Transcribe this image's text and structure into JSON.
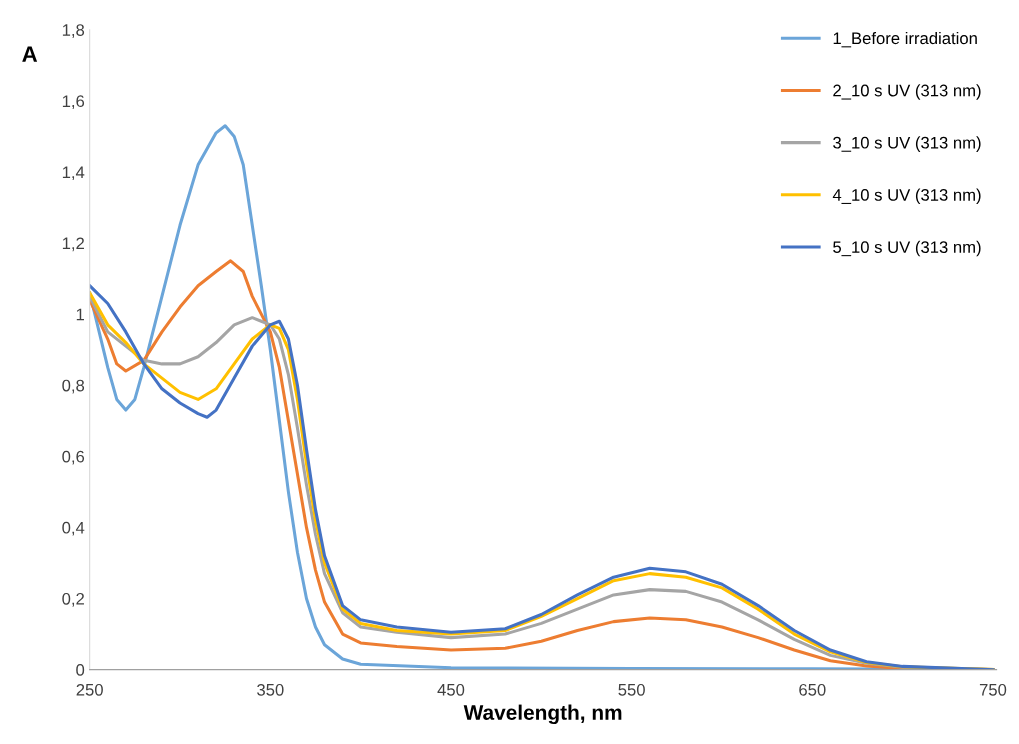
{
  "chart_data": {
    "type": "line",
    "xlabel": "Wavelength, nm",
    "ylabel": "A",
    "xlim": [
      250,
      752
    ],
    "xticks": [
      250,
      350,
      450,
      550,
      650,
      750
    ],
    "ylim": [
      0,
      1.8
    ],
    "yticks": [
      0,
      {
        "value": 0.2,
        "label": "0,2"
      },
      {
        "value": 0.4,
        "label": "0,4"
      },
      {
        "value": 0.6,
        "label": "0,6"
      },
      {
        "value": 0.8,
        "label": "0,8"
      },
      1,
      {
        "value": 1.2,
        "label": "1,2"
      },
      {
        "value": 1.4,
        "label": "1,4"
      },
      {
        "value": 1.6,
        "label": "1,6"
      },
      {
        "value": 1.8,
        "label": "1,8"
      }
    ],
    "grid": false,
    "legend": "top right",
    "marker": "none",
    "line_style": "solid",
    "series": [
      {
        "name": "1_Before irradiation",
        "color": "#6ba5d9",
        "x": [
          250,
          260,
          265,
          270,
          275,
          280,
          290,
          300,
          310,
          320,
          325,
          330,
          335,
          340,
          345,
          350,
          355,
          360,
          365,
          370,
          375,
          380,
          390,
          400,
          450,
          550,
          650,
          750
        ],
        "values": [
          1.06,
          0.85,
          0.76,
          0.73,
          0.76,
          0.85,
          1.05,
          1.25,
          1.42,
          1.51,
          1.53,
          1.5,
          1.42,
          1.25,
          1.08,
          0.9,
          0.7,
          0.5,
          0.33,
          0.2,
          0.12,
          0.07,
          0.03,
          0.015,
          0.005,
          0.003,
          0.002,
          0
        ]
      },
      {
        "name": "2_10 s UV (313 nm)",
        "color": "#ed7d31",
        "x": [
          250,
          260,
          265,
          270,
          280,
          290,
          300,
          310,
          320,
          328,
          335,
          340,
          345,
          350,
          355,
          360,
          365,
          370,
          375,
          380,
          390,
          400,
          420,
          450,
          480,
          500,
          520,
          540,
          560,
          580,
          600,
          620,
          640,
          660,
          680,
          700,
          750
        ],
        "values": [
          1.04,
          0.93,
          0.86,
          0.84,
          0.87,
          0.95,
          1.02,
          1.08,
          1.12,
          1.15,
          1.12,
          1.05,
          1.0,
          0.95,
          0.85,
          0.7,
          0.55,
          0.4,
          0.28,
          0.19,
          0.1,
          0.075,
          0.065,
          0.055,
          0.06,
          0.08,
          0.11,
          0.135,
          0.145,
          0.14,
          0.12,
          0.09,
          0.055,
          0.025,
          0.01,
          0.003,
          0
        ]
      },
      {
        "name": "3_10 s UV (313 nm)",
        "color": "#a5a5a5",
        "x": [
          250,
          260,
          270,
          280,
          290,
          300,
          310,
          320,
          330,
          340,
          345,
          350,
          355,
          360,
          365,
          370,
          375,
          380,
          390,
          400,
          420,
          450,
          480,
          500,
          520,
          540,
          560,
          580,
          600,
          620,
          640,
          660,
          680,
          700,
          750
        ],
        "values": [
          1.05,
          0.95,
          0.91,
          0.87,
          0.86,
          0.86,
          0.88,
          0.92,
          0.97,
          0.99,
          0.98,
          0.97,
          0.93,
          0.83,
          0.68,
          0.52,
          0.38,
          0.27,
          0.16,
          0.12,
          0.105,
          0.09,
          0.1,
          0.13,
          0.17,
          0.21,
          0.225,
          0.22,
          0.19,
          0.14,
          0.085,
          0.04,
          0.018,
          0.007,
          0
        ]
      },
      {
        "name": "4_10 s UV (313 nm)",
        "color": "#ffc000",
        "x": [
          250,
          260,
          270,
          280,
          290,
          300,
          310,
          320,
          330,
          340,
          350,
          355,
          360,
          365,
          370,
          375,
          380,
          390,
          400,
          420,
          450,
          480,
          500,
          520,
          540,
          560,
          580,
          600,
          620,
          640,
          660,
          680,
          700,
          750
        ],
        "values": [
          1.06,
          0.97,
          0.92,
          0.86,
          0.82,
          0.78,
          0.76,
          0.79,
          0.86,
          0.93,
          0.97,
          0.96,
          0.9,
          0.76,
          0.58,
          0.42,
          0.3,
          0.17,
          0.13,
          0.11,
          0.1,
          0.11,
          0.15,
          0.2,
          0.25,
          0.27,
          0.26,
          0.23,
          0.17,
          0.1,
          0.05,
          0.02,
          0.008,
          0
        ]
      },
      {
        "name": "5_10 s UV (313 nm)",
        "color": "#4472c4",
        "x": [
          250,
          260,
          270,
          280,
          290,
          300,
          310,
          315,
          320,
          330,
          340,
          350,
          355,
          360,
          365,
          370,
          375,
          380,
          390,
          400,
          420,
          450,
          480,
          500,
          520,
          540,
          560,
          580,
          600,
          620,
          640,
          660,
          680,
          700,
          750
        ],
        "values": [
          1.08,
          1.03,
          0.95,
          0.86,
          0.79,
          0.75,
          0.72,
          0.71,
          0.73,
          0.82,
          0.91,
          0.97,
          0.98,
          0.93,
          0.8,
          0.62,
          0.45,
          0.32,
          0.18,
          0.14,
          0.12,
          0.105,
          0.115,
          0.155,
          0.21,
          0.26,
          0.285,
          0.275,
          0.24,
          0.18,
          0.11,
          0.055,
          0.022,
          0.009,
          0
        ]
      }
    ]
  }
}
